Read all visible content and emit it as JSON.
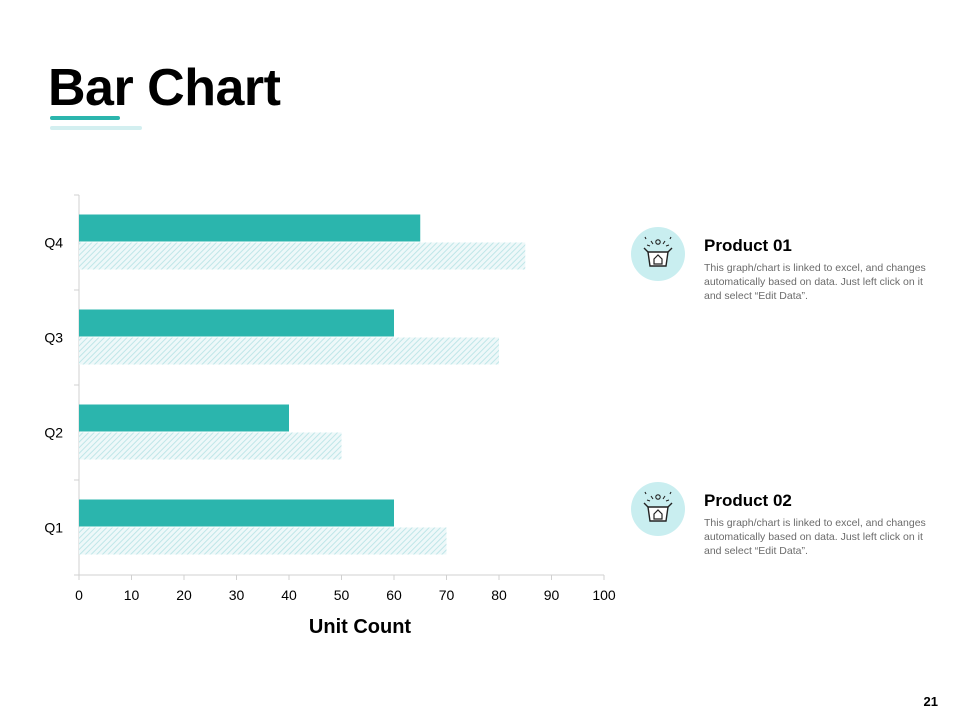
{
  "slide": {
    "title": "Bar Chart",
    "page_number": "21"
  },
  "legend": {
    "items": [
      {
        "name": "Product 01",
        "description": "This graph/chart is linked to excel, and changes automatically based on data. Just left click on it and select “Edit Data”.",
        "icon": "open-box-icon"
      },
      {
        "name": "Product 02",
        "description": "This graph/chart is linked to excel, and changes automatically based on data. Just left click on it and select “Edit Data”.",
        "icon": "open-box-icon"
      }
    ]
  },
  "colors": {
    "accent": "#2bb5ad",
    "accent_light": "#d3eff0",
    "hatch": "#bfe6e8"
  },
  "chart_data": {
    "type": "bar",
    "orientation": "horizontal",
    "categories": [
      "Q1",
      "Q2",
      "Q3",
      "Q4"
    ],
    "series": [
      {
        "name": "Product 01",
        "values": [
          60,
          40,
          60,
          65
        ],
        "color": "#2bb5ad",
        "style": "solid"
      },
      {
        "name": "Product 02",
        "values": [
          70,
          50,
          80,
          85
        ],
        "color": "#bfe6e8",
        "style": "hatched"
      }
    ],
    "xlabel": "Unit Count",
    "ylabel": "",
    "xlim": [
      0,
      100
    ],
    "xticks": [
      0,
      10,
      20,
      30,
      40,
      50,
      60,
      70,
      80,
      90,
      100
    ],
    "grid": false,
    "legend_position": "right"
  }
}
